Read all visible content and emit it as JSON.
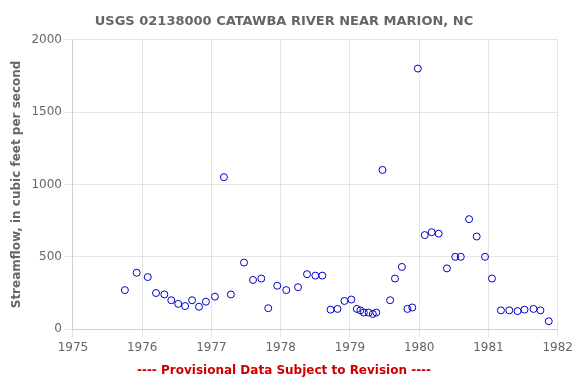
{
  "chart_data": {
    "type": "scatter",
    "title": "USGS 02138000 CATAWBA RIVER NEAR MARION, NC",
    "ylabel": "Streamflow, in cubic feet per second",
    "annotations": [
      {
        "text": "---- Provisional Data Subject to Revision ----",
        "color": "#cc0000"
      }
    ],
    "x": [
      1975.75,
      1975.92,
      1976.08,
      1976.2,
      1976.32,
      1976.42,
      1976.52,
      1976.62,
      1976.72,
      1976.82,
      1976.92,
      1977.05,
      1977.18,
      1977.28,
      1977.47,
      1977.6,
      1977.72,
      1977.82,
      1977.95,
      1978.08,
      1978.25,
      1978.38,
      1978.5,
      1978.6,
      1978.72,
      1978.82,
      1978.92,
      1979.02,
      1979.1,
      1979.15,
      1979.2,
      1979.27,
      1979.33,
      1979.38,
      1979.47,
      1979.58,
      1979.65,
      1979.75,
      1979.83,
      1979.9,
      1979.98,
      1980.08,
      1980.18,
      1980.28,
      1980.4,
      1980.52,
      1980.6,
      1980.72,
      1980.83,
      1980.95,
      1981.05,
      1981.18,
      1981.3,
      1981.42,
      1981.52,
      1981.65,
      1981.75,
      1981.87
    ],
    "values": [
      270,
      390,
      360,
      250,
      240,
      200,
      175,
      160,
      200,
      155,
      190,
      225,
      1050,
      240,
      460,
      340,
      350,
      145,
      300,
      270,
      290,
      380,
      370,
      370,
      135,
      140,
      195,
      205,
      140,
      130,
      115,
      115,
      105,
      115,
      1100,
      200,
      350,
      430,
      140,
      150,
      1800,
      650,
      670,
      660,
      420,
      500,
      500,
      760,
      640,
      500,
      350,
      130,
      130,
      125,
      135,
      140,
      130,
      55
    ],
    "color": "#0000cc",
    "marker": "open circle",
    "xlim": [
      1975,
      1982
    ],
    "ylim": [
      0,
      2000
    ],
    "xticks": [
      1975,
      1976,
      1977,
      1978,
      1979,
      1980,
      1981,
      1982
    ],
    "yticks": [
      0,
      500,
      1000,
      1500,
      2000
    ],
    "grid": true
  }
}
